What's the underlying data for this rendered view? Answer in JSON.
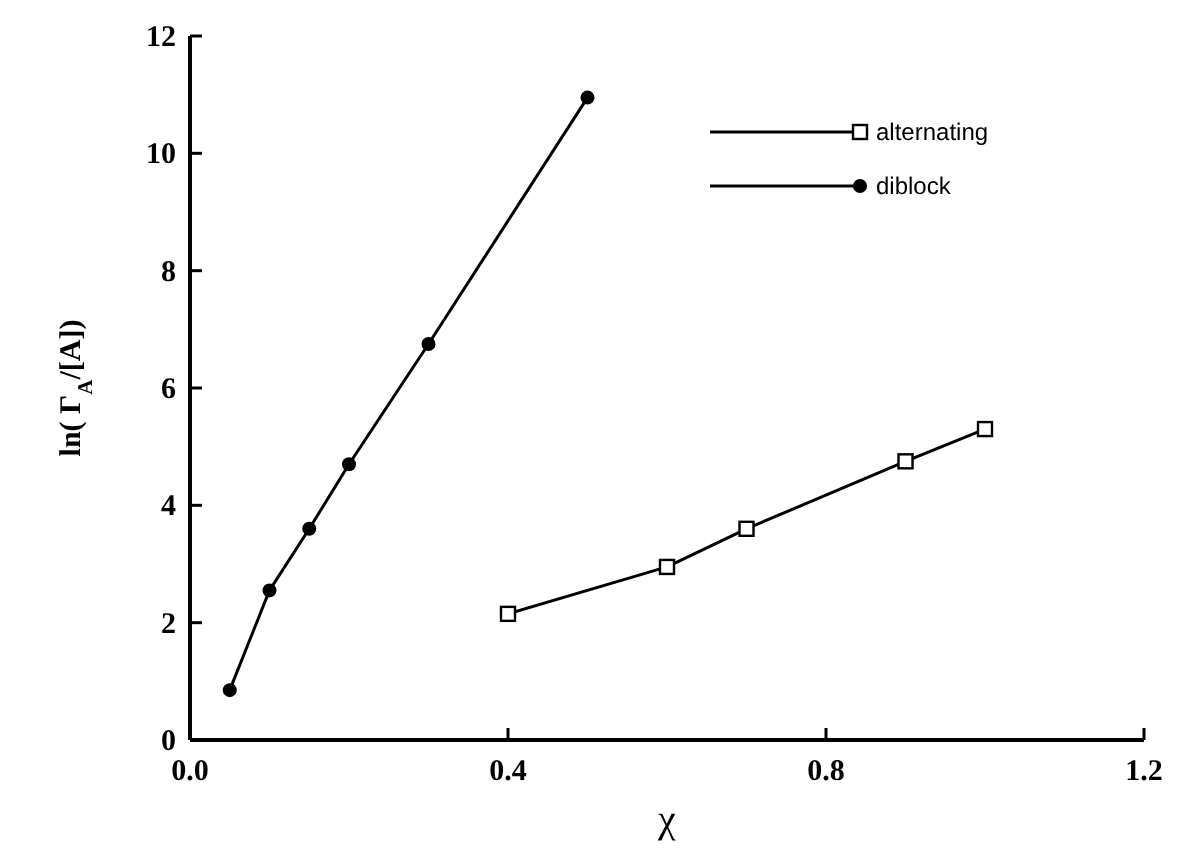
{
  "chart_data": {
    "type": "line",
    "xlabel": "χ",
    "ylabel": "ln( Γ$_{A}$/[A])",
    "xlim": [
      0,
      1.2
    ],
    "xticks": [
      {
        "value": 0,
        "label": "0.0"
      },
      {
        "value": 0.4,
        "label": "0.4"
      },
      {
        "value": 0.8,
        "label": "0.8"
      },
      {
        "value": 1.2,
        "label": "1.2"
      }
    ],
    "ylim": [
      0,
      12
    ],
    "yticks": [
      0,
      2,
      4,
      6,
      8,
      10,
      12
    ],
    "legend": "top right",
    "grid": false,
    "line_style": "solid",
    "series": [
      {
        "name": "alternating",
        "color": "#000000",
        "marker": "square",
        "x": [
          0.4,
          0.6,
          0.7,
          0.9,
          1.0
        ],
        "values": [
          2.15,
          2.95,
          3.6,
          4.75,
          5.3
        ]
      },
      {
        "name": "diblock",
        "color": "#000000",
        "marker": "circle",
        "x": [
          0.05,
          0.1,
          0.15,
          0.2,
          0.3,
          0.5
        ],
        "values": [
          0.85,
          2.55,
          3.6,
          4.7,
          6.75,
          10.95
        ]
      }
    ]
  }
}
